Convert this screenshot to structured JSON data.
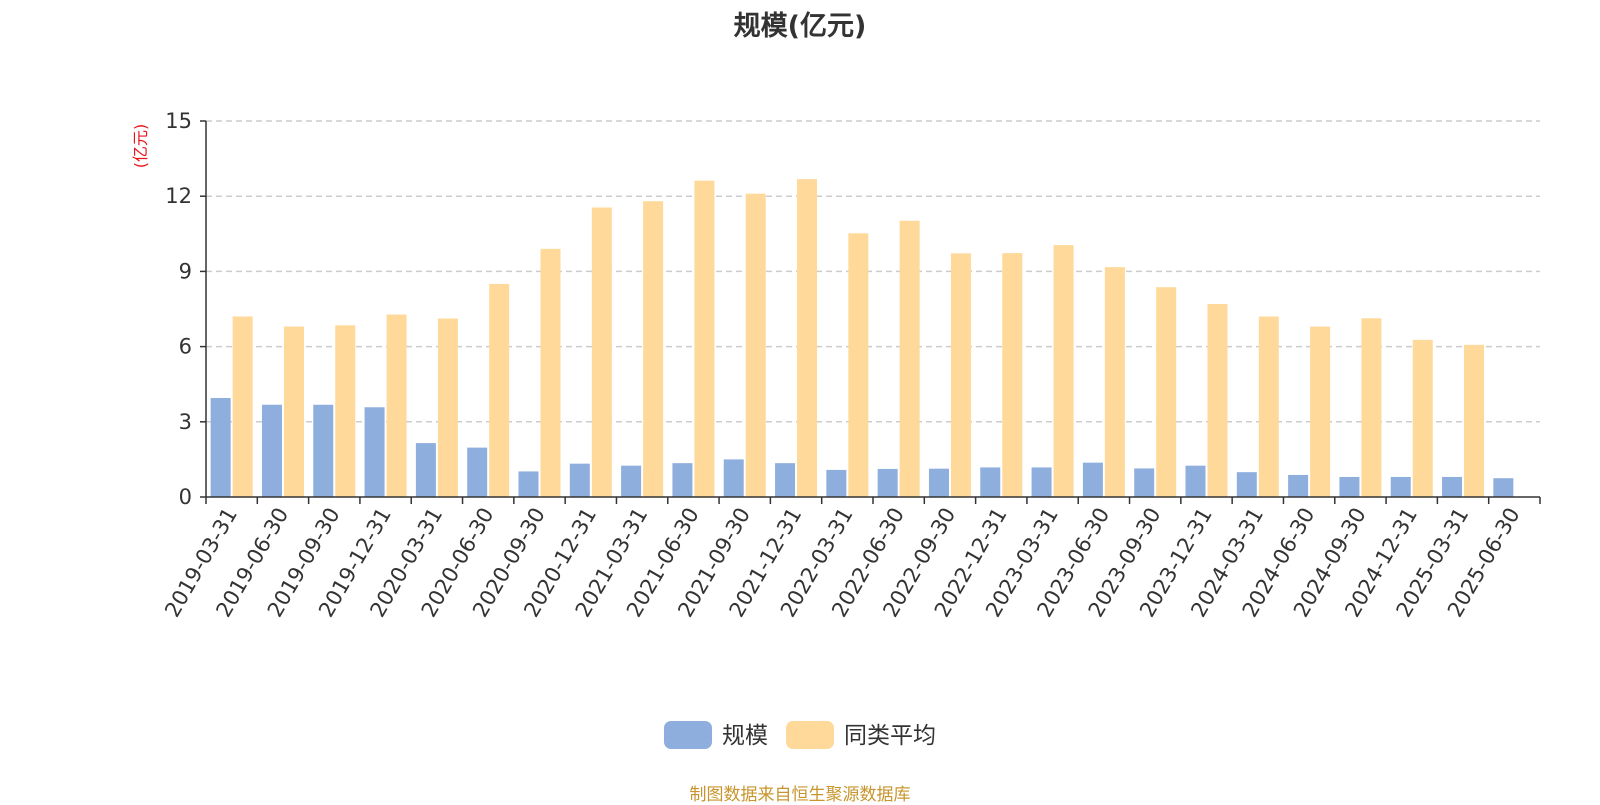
{
  "chart_data": {
    "type": "bar",
    "title": "规模(亿元)",
    "unit_label": "(亿元)",
    "source_note": "制图数据来自恒生聚源数据库",
    "ylim": [
      0,
      15
    ],
    "yticks": [
      0,
      3,
      6,
      9,
      12,
      15
    ],
    "grid": true,
    "legend_position": "bottom-center",
    "categories": [
      "2019-03-31",
      "2019-06-30",
      "2019-09-30",
      "2019-12-31",
      "2020-03-31",
      "2020-06-30",
      "2020-09-30",
      "2020-12-31",
      "2021-03-31",
      "2021-06-30",
      "2021-09-30",
      "2021-12-31",
      "2022-03-31",
      "2022-06-30",
      "2022-09-30",
      "2022-12-31",
      "2023-03-31",
      "2023-06-30",
      "2023-09-30",
      "2023-12-31",
      "2024-03-31",
      "2024-06-30",
      "2024-09-30",
      "2024-12-31",
      "2025-03-31",
      "2025-06-30"
    ],
    "series": [
      {
        "name": "规模",
        "color": "#8eaede",
        "values": [
          3.95,
          3.68,
          3.68,
          3.58,
          2.15,
          1.97,
          1.02,
          1.33,
          1.25,
          1.35,
          1.5,
          1.35,
          1.08,
          1.12,
          1.13,
          1.18,
          1.18,
          1.37,
          1.14,
          1.25,
          0.99,
          0.88,
          0.8,
          0.8,
          0.8,
          0.75
        ]
      },
      {
        "name": "同类平均",
        "color": "#ffd99a",
        "values": [
          7.2,
          6.8,
          6.85,
          7.28,
          7.12,
          8.5,
          9.9,
          11.55,
          11.8,
          12.62,
          12.1,
          12.68,
          10.52,
          11.02,
          9.72,
          9.73,
          10.05,
          9.17,
          8.37,
          7.7,
          7.2,
          6.8,
          7.13,
          6.27,
          6.07,
          null
        ]
      }
    ]
  }
}
